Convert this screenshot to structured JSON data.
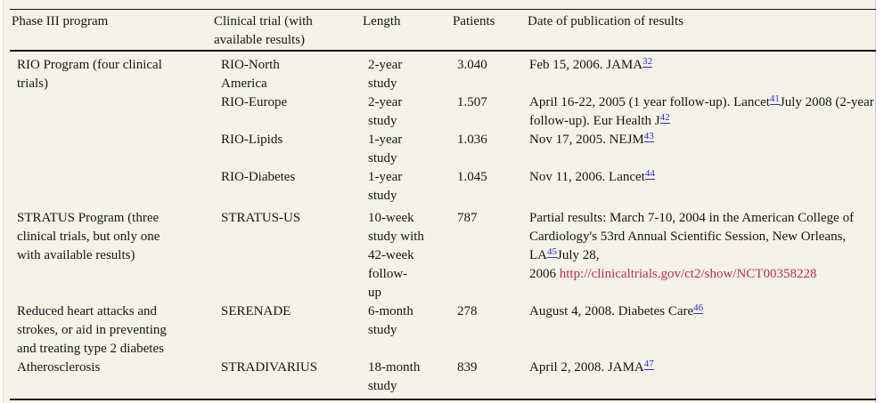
{
  "colors": {
    "panel_background": "#f5f2e8",
    "text": "#161616",
    "rule": "#141414",
    "reference_link": "#2b2bd7",
    "url_link": "#bb2f55"
  },
  "table": {
    "columns": [
      {
        "label": "Phase III program"
      },
      {
        "label": "Clinical trial (with available results)"
      },
      {
        "label": "Length"
      },
      {
        "label": "Patients"
      },
      {
        "label": "Date of publication of results"
      }
    ],
    "rows": [
      {
        "program": "RIO Program (four clinical\ntrials)",
        "program_rowspan": 4,
        "trial": "RIO-North\nAmerica",
        "length": "2-year\nstudy",
        "patients": "3.040",
        "date": [
          {
            "text": "Feb 15, 2006. JAMA"
          },
          {
            "text": "32",
            "style": "sup"
          }
        ]
      },
      {
        "trial": "RIO-Europe",
        "length": "2-year\nstudy",
        "patients": "1.507",
        "date": [
          {
            "text": "April 16-22, 2005 (1 year follow-up). Lancet"
          },
          {
            "text": "41",
            "style": "sup"
          },
          {
            "text": "July 2008 (2-year follow-up). Eur Health J"
          },
          {
            "text": "42",
            "style": "sup"
          }
        ]
      },
      {
        "trial": "RIO-Lipids",
        "length": "1-year\nstudy",
        "patients": "1.036",
        "date": [
          {
            "text": "Nov 17, 2005. NEJM"
          },
          {
            "text": "43",
            "style": "sup"
          }
        ]
      },
      {
        "trial": "RIO-Diabetes",
        "length": "1-year\nstudy",
        "patients": "1.045",
        "date": [
          {
            "text": "Nov 11, 2006. Lancet"
          },
          {
            "text": "44",
            "style": "sup"
          }
        ]
      },
      {
        "program": "STRATUS Program (three\nclinical trials, but only one\nwith available results)",
        "program_rowspan": 1,
        "trial": "STRATUS-US",
        "length": "10-week\nstudy with\n42-week\nfollow-\nup",
        "patients": "787",
        "date": [
          {
            "text": "Partial results: March 7-10, 2004 in the American College of Cardiology's 53rd Annual Scientific Session, New Orleans, LA"
          },
          {
            "text": "45",
            "style": "sup"
          },
          {
            "text": "July 28, 2006 "
          },
          {
            "text": "http://clinicaltrials.gov/ct2/show/NCT00358228",
            "style": "url"
          }
        ]
      },
      {
        "program": "Reduced heart attacks and\nstrokes, or aid in preventing\nand treating type 2 diabetes",
        "program_rowspan": 1,
        "trial": "SERENADE",
        "length": "6-month\nstudy",
        "patients": "278",
        "date": [
          {
            "text": "August 4, 2008. Diabetes Care"
          },
          {
            "text": "46",
            "style": "sup"
          }
        ]
      },
      {
        "program": "Atherosclerosis",
        "program_rowspan": 1,
        "trial": "STRADIVARIUS",
        "length": "18-month\nstudy",
        "patients": "839",
        "date": [
          {
            "text": "April 2, 2008. JAMA"
          },
          {
            "text": "47",
            "style": "sup"
          }
        ]
      }
    ]
  }
}
